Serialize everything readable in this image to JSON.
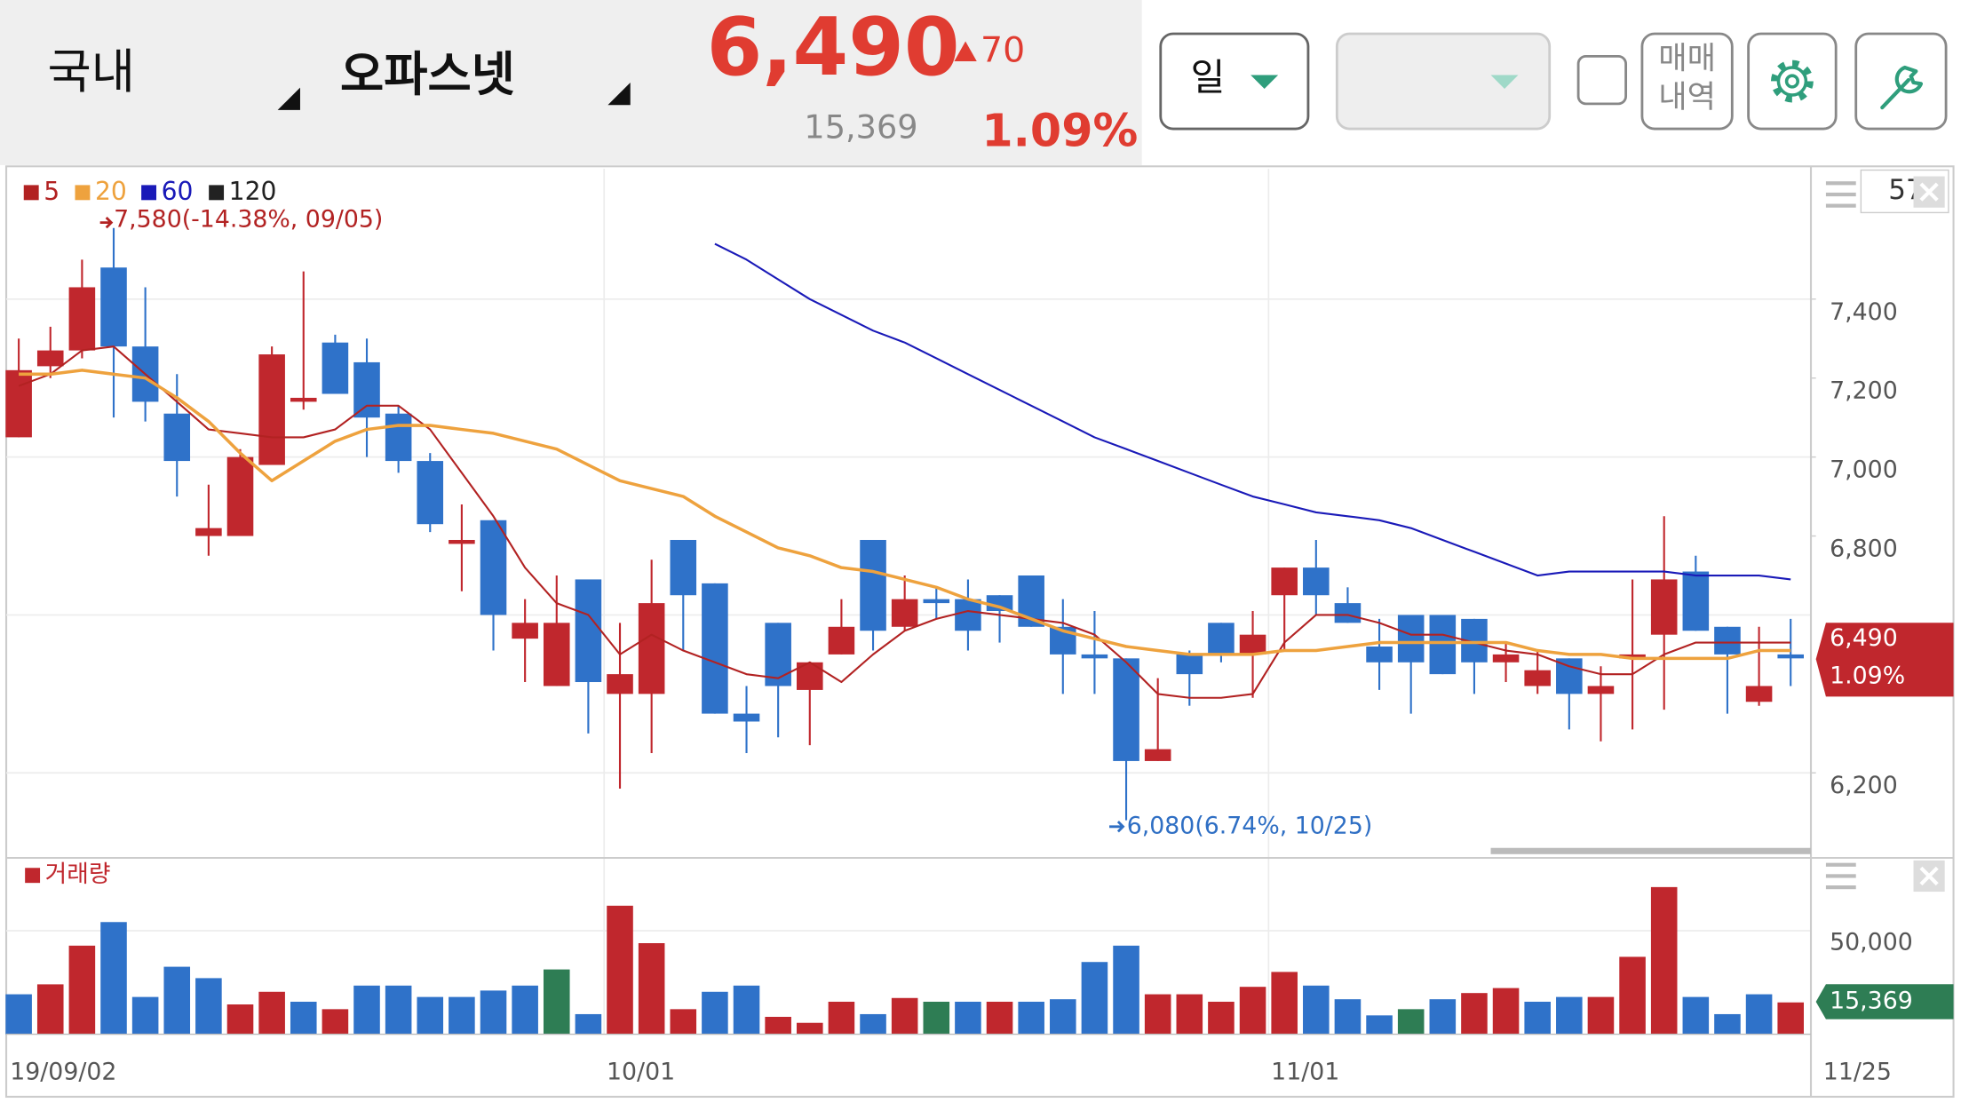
{
  "header": {
    "market": "국내",
    "stock_name": "오파스넷",
    "price": "6,490",
    "change": "70",
    "volume": "15,369",
    "change_rate": "1.09%",
    "period": "일",
    "trade_history": [
      "매매",
      "내역"
    ]
  },
  "chart_data": {
    "type": "candlestick",
    "categories": [
      "19/09/02",
      null,
      null,
      null,
      null,
      null,
      null,
      null,
      null,
      null,
      null,
      null,
      null,
      null,
      null,
      null,
      null,
      null,
      null,
      "10/01",
      null,
      null,
      null,
      null,
      null,
      null,
      null,
      null,
      null,
      null,
      null,
      null,
      null,
      null,
      null,
      null,
      null,
      null,
      null,
      null,
      "11/01",
      null,
      null,
      null,
      null,
      null,
      null,
      null,
      null,
      null,
      null,
      null,
      null,
      null,
      null,
      null,
      "11/25"
    ],
    "open": [
      7050,
      7230,
      7270,
      7480,
      7280,
      7110,
      6800,
      6800,
      6980,
      7140,
      7290,
      7240,
      7110,
      6990,
      6780,
      6840,
      6540,
      6420,
      6690,
      6400,
      6400,
      6790,
      6680,
      6350,
      6580,
      6410,
      6500,
      6790,
      6570,
      6640,
      6640,
      6650,
      6700,
      6570,
      6500,
      6490,
      6230,
      6500,
      6580,
      6500,
      6650,
      6720,
      6630,
      6520,
      6600,
      6600,
      6590,
      6480,
      6420,
      6490,
      6400,
      6490,
      6550,
      6710,
      6570,
      6380,
      6500
    ],
    "high": [
      7300,
      7330,
      7500,
      7580,
      7430,
      7210,
      6930,
      7020,
      7280,
      7470,
      7310,
      7300,
      7130,
      7010,
      6880,
      6840,
      6640,
      6700,
      6690,
      6580,
      6740,
      6790,
      6680,
      6420,
      6580,
      6480,
      6640,
      6790,
      6700,
      6670,
      6690,
      6650,
      6700,
      6640,
      6610,
      6490,
      6440,
      6510,
      6580,
      6610,
      6720,
      6790,
      6670,
      6590,
      6600,
      6600,
      6590,
      6530,
      6510,
      6490,
      6470,
      6690,
      6850,
      6750,
      6570,
      6570,
      6590
    ],
    "low": [
      7050,
      7200,
      7250,
      7100,
      7090,
      6900,
      6750,
      6800,
      6980,
      7120,
      7160,
      7000,
      6960,
      6810,
      6660,
      6510,
      6430,
      6420,
      6300,
      6160,
      6250,
      6510,
      6350,
      6250,
      6290,
      6270,
      6500,
      6510,
      6560,
      6590,
      6510,
      6530,
      6570,
      6400,
      6400,
      6080,
      6230,
      6370,
      6480,
      6390,
      6510,
      6600,
      6580,
      6410,
      6350,
      6450,
      6400,
      6430,
      6400,
      6310,
      6280,
      6310,
      6360,
      6560,
      6350,
      6370,
      6420
    ],
    "close": [
      7220,
      7270,
      7430,
      7280,
      7140,
      6990,
      6820,
      7000,
      7260,
      7150,
      7160,
      7100,
      6990,
      6830,
      6790,
      6600,
      6580,
      6580,
      6430,
      6450,
      6630,
      6650,
      6350,
      6330,
      6420,
      6480,
      6570,
      6560,
      6640,
      6630,
      6560,
      6610,
      6570,
      6500,
      6490,
      6230,
      6260,
      6450,
      6500,
      6550,
      6720,
      6650,
      6580,
      6480,
      6480,
      6450,
      6480,
      6500,
      6460,
      6400,
      6420,
      6500,
      6690,
      6560,
      6500,
      6420,
      6490
    ],
    "up_color": "#c0272d",
    "down_color": "#2f72c9",
    "moving_averages": [
      {
        "name": "5",
        "color": "#b22222",
        "values": [
          7180,
          7210,
          7270,
          7280,
          7210,
          7140,
          7070,
          7060,
          7050,
          7050,
          7070,
          7130,
          7130,
          7070,
          6960,
          6850,
          6720,
          6630,
          6600,
          6500,
          6550,
          6510,
          6480,
          6450,
          6440,
          6480,
          6430,
          6500,
          6560,
          6590,
          6610,
          6600,
          6590,
          6580,
          6550,
          6480,
          6400,
          6390,
          6390,
          6400,
          6530,
          6600,
          6600,
          6580,
          6550,
          6550,
          6530,
          6510,
          6500,
          6470,
          6450,
          6450,
          6500,
          6530,
          6530,
          6530,
          6530
        ]
      },
      {
        "name": "20",
        "color": "#eea23e",
        "values": [
          7210,
          7210,
          7220,
          7210,
          7200,
          7150,
          7090,
          7010,
          6940,
          6990,
          7040,
          7070,
          7080,
          7080,
          7070,
          7060,
          7040,
          7020,
          6980,
          6940,
          6920,
          6900,
          6850,
          6810,
          6770,
          6750,
          6720,
          6710,
          6690,
          6670,
          6640,
          6620,
          6590,
          6560,
          6540,
          6520,
          6510,
          6500,
          6500,
          6500,
          6510,
          6510,
          6520,
          6530,
          6530,
          6530,
          6530,
          6530,
          6510,
          6500,
          6500,
          6490,
          6490,
          6490,
          6490,
          6510,
          6510
        ]
      },
      {
        "name": "60",
        "color": "#1a1ab8",
        "values": [
          null,
          null,
          null,
          null,
          null,
          null,
          null,
          null,
          null,
          null,
          null,
          null,
          null,
          null,
          null,
          null,
          null,
          null,
          null,
          null,
          null,
          null,
          7540,
          7500,
          7450,
          7400,
          7360,
          7320,
          7290,
          7250,
          7210,
          7170,
          7130,
          7090,
          7050,
          7020,
          6990,
          6960,
          6930,
          6900,
          6880,
          6860,
          6850,
          6840,
          6820,
          6790,
          6760,
          6730,
          6700,
          6710,
          6710,
          6710,
          6710,
          6700,
          6700,
          6700,
          6690
        ]
      },
      {
        "name": "120",
        "color": "#222222",
        "values": []
      }
    ],
    "ylim": [
      6010,
      7730
    ],
    "yticks": [
      {
        "value": 6200,
        "label": "6,200"
      },
      {
        "value": 6800,
        "label": "6,800"
      },
      {
        "value": 7000,
        "label": "7,000"
      },
      {
        "value": 7200,
        "label": "7,200"
      },
      {
        "value": 7400,
        "label": "7,400"
      }
    ],
    "ygrid": [
      6200,
      6600,
      7000,
      7400
    ],
    "high_annotation": "7,580(-14.38%, 09/05)",
    "low_annotation": "6,080(6.74%, 10/25)",
    "price_label": "6,490",
    "change_label": "1.09%",
    "visible_count": 57,
    "volume": {
      "name": "거래량",
      "values": [
        19300,
        24100,
        42800,
        54200,
        18000,
        32600,
        27100,
        14400,
        20500,
        15700,
        12100,
        23500,
        23500,
        18000,
        18000,
        21100,
        23500,
        31300,
        9700,
        62100,
        44000,
        12100,
        20500,
        23500,
        8400,
        5500,
        15700,
        9700,
        17500,
        15700,
        15700,
        15700,
        15700,
        16900,
        34900,
        42800,
        19300,
        19300,
        15700,
        22900,
        30100,
        23500,
        16900,
        9100,
        12100,
        16900,
        19900,
        22300,
        15700,
        18000,
        18000,
        37400,
        71100,
        18000,
        9700,
        19300,
        15369
      ],
      "colors": [
        "#2f72c9",
        "#c0272d",
        "#c0272d",
        "#2f72c9",
        "#2f72c9",
        "#2f72c9",
        "#2f72c9",
        "#c0272d",
        "#c0272d",
        "#2f72c9",
        "#c0272d",
        "#2f72c9",
        "#2f72c9",
        "#2f72c9",
        "#2f72c9",
        "#2f72c9",
        "#2f72c9",
        "#2e7d54",
        "#2f72c9",
        "#c0272d",
        "#c0272d",
        "#c0272d",
        "#2f72c9",
        "#2f72c9",
        "#c0272d",
        "#c0272d",
        "#c0272d",
        "#2f72c9",
        "#c0272d",
        "#2e7d54",
        "#2f72c9",
        "#c0272d",
        "#2f72c9",
        "#2f72c9",
        "#2f72c9",
        "#2f72c9",
        "#c0272d",
        "#c0272d",
        "#c0272d",
        "#c0272d",
        "#c0272d",
        "#2f72c9",
        "#2f72c9",
        "#2f72c9",
        "#2e7d54",
        "#2f72c9",
        "#c0272d",
        "#c0272d",
        "#2f72c9",
        "#2f72c9",
        "#c0272d",
        "#c0272d",
        "#c0272d",
        "#2f72c9",
        "#2f72c9",
        "#2f72c9",
        "#c0272d"
      ]
    },
    "volume_ylim": [
      0,
      84000
    ],
    "volume_yticks": [
      {
        "value": 50000,
        "label": "50,000"
      }
    ],
    "volume_label": "15,369"
  }
}
